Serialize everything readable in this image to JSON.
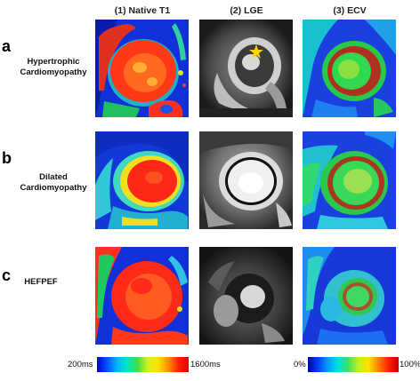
{
  "columns": [
    "(1) Native T1",
    "(2) LGE",
    "(3) ECV"
  ],
  "rows": [
    {
      "letter": "a",
      "label_line1": "Hypertrophic",
      "label_line2": "Cardiomyopathy"
    },
    {
      "letter": "b",
      "label_line1": "Dilated",
      "label_line2": "Cardiomyopathy"
    },
    {
      "letter": "c",
      "label_line1": "HEFPEF",
      "label_line2": ""
    }
  ],
  "legends": {
    "t1": {
      "min": "200ms",
      "max": "1600ms"
    },
    "ecv": {
      "min": "0%",
      "max": "100%"
    }
  },
  "annotation": {
    "lge_marker": "yellow star"
  }
}
